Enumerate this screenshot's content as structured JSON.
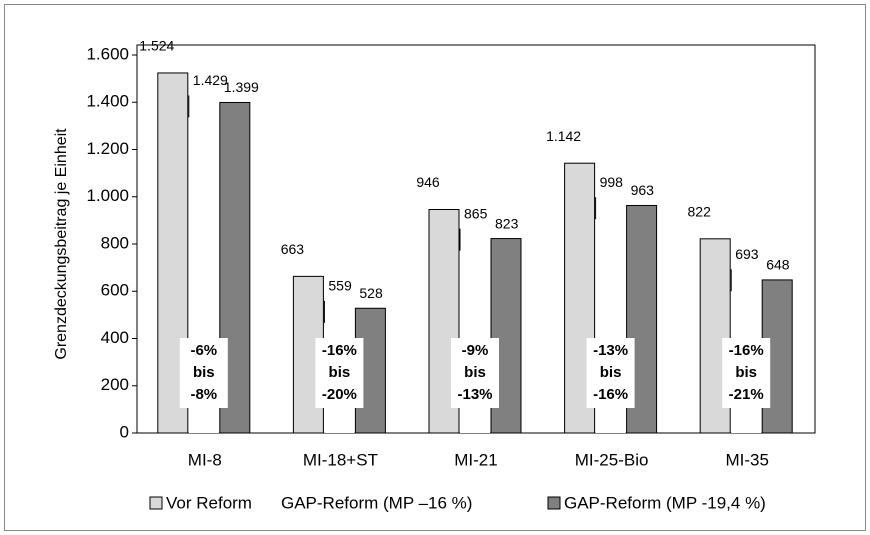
{
  "chart_data": {
    "type": "bar",
    "y_label": "Grenzdeckungsbeitrag je Einheit",
    "categories": [
      "MI-8",
      "MI-18+ST",
      "MI-21",
      "MI-25-Bio",
      "MI-35"
    ],
    "series": [
      {
        "name": "Vor Reform",
        "color": "#d9d9d9",
        "values": [
          1524,
          663,
          946,
          1142,
          822
        ],
        "value_labels": [
          "1.524",
          "663",
          "946",
          "1.142",
          "822"
        ]
      },
      {
        "name": "GAP-Reform (MP –16 %)",
        "color": "#ffffff",
        "values": [
          1429,
          559,
          865,
          998,
          693
        ],
        "value_labels": [
          "1.429",
          "559",
          "865",
          "998",
          "693"
        ]
      },
      {
        "name": "GAP-Reform (MP -19,4 %)",
        "color": "#808080",
        "values": [
          1399,
          528,
          823,
          963,
          648
        ],
        "value_labels": [
          "1.399",
          "528",
          "823",
          "963",
          "648"
        ]
      }
    ],
    "annotations": [
      {
        "lines": [
          "-6%",
          "bis",
          "-8%"
        ]
      },
      {
        "lines": [
          "-16%",
          "bis",
          "-20%"
        ]
      },
      {
        "lines": [
          "-9%",
          "bis",
          "-13%"
        ]
      },
      {
        "lines": [
          "-13%",
          "bis",
          "-16%"
        ]
      },
      {
        "lines": [
          "-16%",
          "bis",
          "-21%"
        ]
      }
    ],
    "ylim": [
      0,
      1600
    ],
    "yticks": [
      0,
      200,
      400,
      600,
      800,
      {
        "value": 1000,
        "label": "1.000"
      },
      {
        "value": 1200,
        "label": "1.200"
      },
      {
        "value": 1400,
        "label": "1.400"
      },
      {
        "value": 1600,
        "label": "1.600"
      }
    ],
    "grid": false
  }
}
